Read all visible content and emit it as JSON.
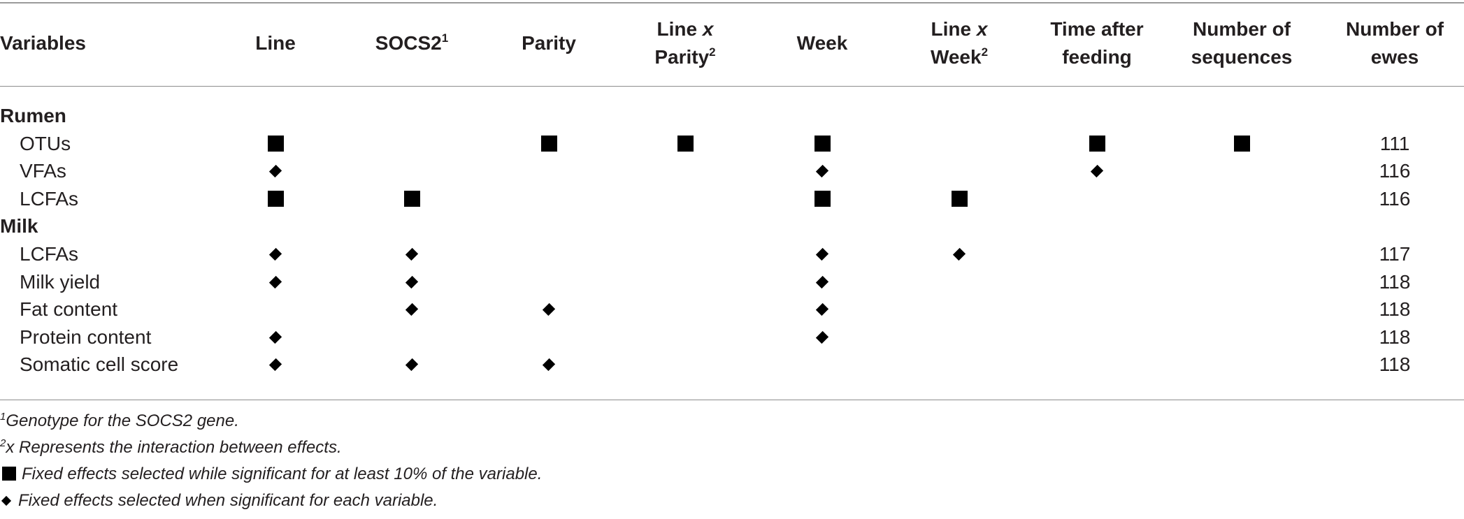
{
  "header": {
    "variables": "Variables",
    "line": "Line",
    "socs2": "SOCS2",
    "socs2_sup": "1",
    "parity": "Parity",
    "line_x_parity_1": "Line",
    "line_x_parity_x": "x",
    "line_x_parity_2": "Parity",
    "line_x_parity_sup": "2",
    "week": "Week",
    "line_x_week_1": "Line",
    "line_x_week_x": "x",
    "line_x_week_2": "Week",
    "line_x_week_sup": "2",
    "time_after_feeding_1": "Time after",
    "time_after_feeding_2": "feeding",
    "number_of_sequences_1": "Number of",
    "number_of_sequences_2": "sequences",
    "number_of_ewes_1": "Number of",
    "number_of_ewes_2": "ewes"
  },
  "effect_columns": [
    "Line",
    "SOCS2",
    "Parity",
    "Line x Parity",
    "Week",
    "Line x Week",
    "Time after feeding",
    "Number of sequences"
  ],
  "sections": [
    {
      "name": "Rumen",
      "rows": [
        {
          "label": "OTUs",
          "marks": [
            "square",
            "",
            "square",
            "square",
            "square",
            "",
            "square",
            "square"
          ],
          "ewes": "111"
        },
        {
          "label": "VFAs",
          "marks": [
            "diamond",
            "",
            "",
            "",
            "diamond",
            "",
            "diamond",
            ""
          ],
          "ewes": "116"
        },
        {
          "label": "LCFAs",
          "marks": [
            "square",
            "square",
            "",
            "",
            "square",
            "square",
            "",
            ""
          ],
          "ewes": "116"
        }
      ]
    },
    {
      "name": "Milk",
      "rows": [
        {
          "label": "LCFAs",
          "marks": [
            "diamond",
            "diamond",
            "",
            "",
            "diamond",
            "diamond",
            "",
            ""
          ],
          "ewes": "117"
        },
        {
          "label": "Milk yield",
          "marks": [
            "diamond",
            "diamond",
            "",
            "",
            "diamond",
            "",
            "",
            ""
          ],
          "ewes": "118"
        },
        {
          "label": "Fat content",
          "marks": [
            "",
            "diamond",
            "diamond",
            "",
            "diamond",
            "",
            "",
            ""
          ],
          "ewes": "118"
        },
        {
          "label": "Protein content",
          "marks": [
            "diamond",
            "",
            "",
            "",
            "diamond",
            "",
            "",
            ""
          ],
          "ewes": "118"
        },
        {
          "label": "Somatic cell score",
          "marks": [
            "diamond",
            "diamond",
            "diamond",
            "",
            "",
            "",
            "",
            ""
          ],
          "ewes": "118"
        }
      ]
    }
  ],
  "footnotes": {
    "fn1_sup": "1",
    "fn1_text": "Genotype for the SOCS2 gene.",
    "fn2_sup": "2",
    "fn2_text": "x Represents the interaction between effects.",
    "fn3_text": "Fixed effects selected while significant for at least 10% of the variable.",
    "fn4_text": "Fixed effects selected when significant for each variable."
  }
}
